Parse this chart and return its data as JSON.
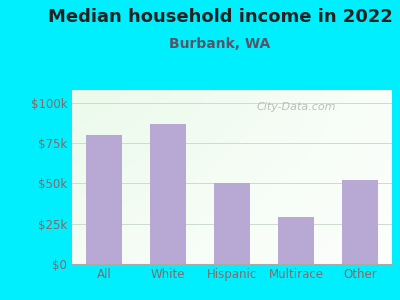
{
  "title": "Median household income in 2022",
  "subtitle": "Burbank, WA",
  "categories": [
    "All",
    "White",
    "Hispanic",
    "Multirace",
    "Other"
  ],
  "values": [
    80000,
    87000,
    50000,
    29000,
    52000
  ],
  "bar_color": "#b8a9d4",
  "background_outer": "#00efff",
  "yticks": [
    0,
    25000,
    50000,
    75000,
    100000
  ],
  "ytick_labels": [
    "$0",
    "$25k",
    "$50k",
    "$75k",
    "$100k"
  ],
  "ylim": [
    0,
    108000
  ],
  "title_fontsize": 13,
  "subtitle_fontsize": 10,
  "tick_fontsize": 8.5,
  "tick_color": "#886666",
  "watermark": "City-Data.com",
  "grid_color": "#ccddcc"
}
